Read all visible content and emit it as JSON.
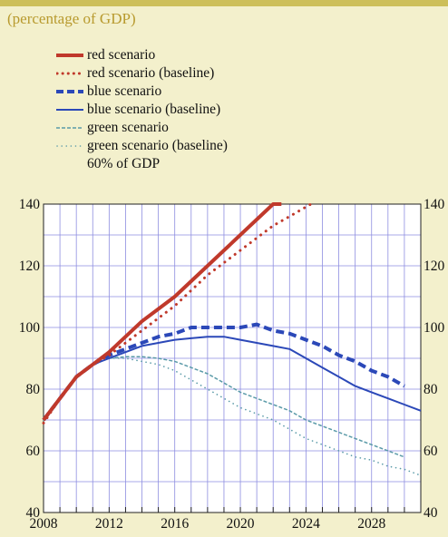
{
  "subtitle": "(percentage of GDP)",
  "colors": {
    "background": "#f3f0cc",
    "topbar": "#cdbf5a",
    "subtitle": "#b89a2e",
    "grid": "#8e8ee0",
    "plot_bg": "#ffffff"
  },
  "legend": [
    {
      "label": "red scenario",
      "color": "#c0392b",
      "style": "solid-thick"
    },
    {
      "label": "red scenario (baseline)",
      "color": "#c0392b",
      "style": "dotted-thick"
    },
    {
      "label": "blue scenario",
      "color": "#2b48b8",
      "style": "dashed-thick"
    },
    {
      "label": "blue scenario (baseline)",
      "color": "#2b48b8",
      "style": "solid"
    },
    {
      "label": "green scenario",
      "color": "#5a9aa8",
      "style": "dashed-thin"
    },
    {
      "label": "green scenario (baseline)",
      "color": "#5a9aa8",
      "style": "dotted-thin"
    },
    {
      "label": "60% of GDP",
      "color": "none",
      "style": "none"
    }
  ],
  "chart_data": {
    "type": "line",
    "xlim": [
      2008,
      2031
    ],
    "ylim": [
      40,
      140
    ],
    "x_ticks": [
      "2008",
      "2012",
      "2016",
      "2020",
      "2024",
      "2028"
    ],
    "y_ticks": [
      "40",
      "60",
      "80",
      "100",
      "120",
      "140"
    ],
    "grid": true,
    "series": [
      {
        "name": "red scenario",
        "color": "#c0392b",
        "style": "solid-thick",
        "x": [
          2008,
          2009,
          2010,
          2011,
          2012,
          2013,
          2014,
          2015,
          2016,
          2017,
          2018,
          2019,
          2020,
          2021,
          2022,
          2022.5
        ],
        "y": [
          70,
          77,
          84,
          88,
          92,
          97,
          102,
          106,
          110,
          115,
          120,
          125,
          130,
          135,
          140,
          140
        ]
      },
      {
        "name": "red scenario (baseline)",
        "color": "#c0392b",
        "style": "dotted-thick",
        "x": [
          2008,
          2009,
          2010,
          2011,
          2012,
          2013,
          2014,
          2015,
          2016,
          2017,
          2018,
          2019,
          2020,
          2021,
          2022,
          2023,
          2024.3
        ],
        "y": [
          69,
          77,
          84,
          88,
          91,
          95,
          99,
          103,
          107,
          112,
          117,
          121,
          125,
          129,
          133,
          136,
          140
        ]
      },
      {
        "name": "blue scenario",
        "color": "#2b48b8",
        "style": "dashed-thick",
        "x": [
          2008,
          2009,
          2010,
          2011,
          2012,
          2013,
          2014,
          2015,
          2016,
          2017,
          2018,
          2019,
          2020,
          2021,
          2022,
          2023,
          2024,
          2025,
          2026,
          2027,
          2028,
          2029,
          2030
        ],
        "y": [
          70,
          77,
          84,
          88,
          91,
          93,
          95,
          97,
          98,
          100,
          100,
          100,
          100,
          101,
          99,
          98,
          96,
          94,
          91,
          89,
          86,
          84,
          81
        ]
      },
      {
        "name": "blue scenario (baseline)",
        "color": "#2b48b8",
        "style": "solid",
        "x": [
          2008,
          2009,
          2010,
          2011,
          2012,
          2013,
          2014,
          2015,
          2016,
          2017,
          2018,
          2019,
          2020,
          2021,
          2022,
          2023,
          2024,
          2025,
          2026,
          2027,
          2028,
          2029,
          2030,
          2031
        ],
        "y": [
          70,
          77,
          84,
          88,
          90,
          92,
          94,
          95,
          96,
          96.5,
          97,
          97,
          96,
          95,
          94,
          93,
          90,
          87,
          84,
          81,
          79,
          77,
          75,
          73
        ]
      },
      {
        "name": "green scenario",
        "color": "#5a9aa8",
        "style": "dashed-thin",
        "x": [
          2008,
          2009,
          2010,
          2011,
          2012,
          2013,
          2014,
          2015,
          2016,
          2017,
          2018,
          2019,
          2020,
          2021,
          2022,
          2023,
          2024,
          2025,
          2026,
          2027,
          2028,
          2029,
          2030
        ],
        "y": [
          70,
          77,
          84,
          88,
          90,
          90.5,
          90.5,
          90,
          89,
          87,
          85,
          82,
          79,
          77,
          75,
          73,
          70,
          68,
          66,
          64,
          62,
          60,
          58
        ]
      },
      {
        "name": "green scenario (baseline)",
        "color": "#5a9aa8",
        "style": "dotted-thin",
        "x": [
          2008,
          2009,
          2010,
          2011,
          2012,
          2013,
          2014,
          2015,
          2016,
          2017,
          2018,
          2019,
          2020,
          2021,
          2022,
          2023,
          2024,
          2025,
          2026,
          2027,
          2028,
          2029,
          2030,
          2031
        ],
        "y": [
          70,
          77,
          84,
          88,
          90,
          90,
          89,
          88,
          86,
          83,
          80,
          77,
          74,
          72,
          70,
          67,
          64,
          62,
          60,
          58,
          57,
          55,
          54,
          52
        ]
      }
    ]
  }
}
